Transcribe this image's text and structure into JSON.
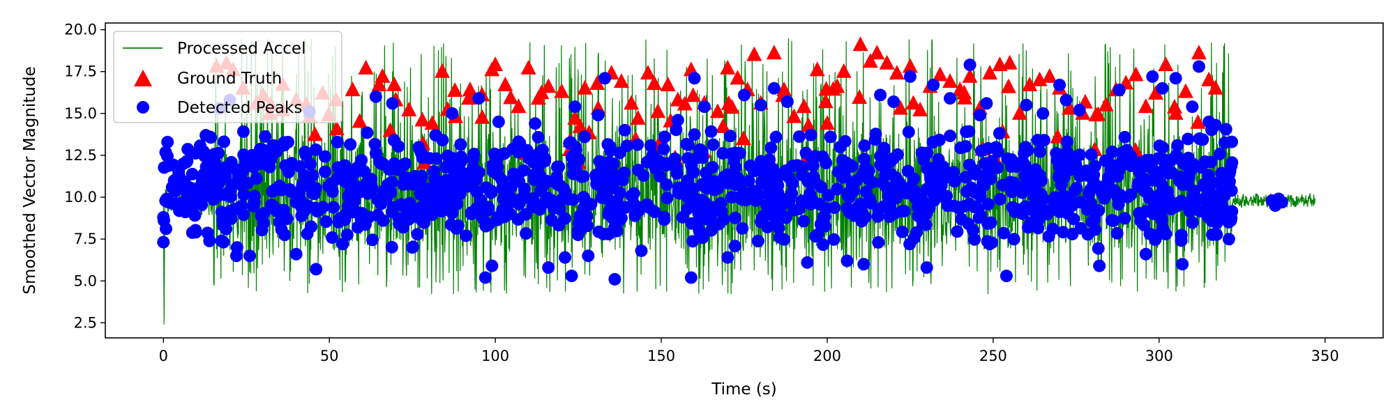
{
  "chart_data": {
    "type": "scatter",
    "title": "",
    "xlabel": "Time (s)",
    "ylabel": "Smoothed Vector Magnitude",
    "xlim": [
      -17.5,
      367.5
    ],
    "ylim": [
      1.6,
      20.4
    ],
    "xticks": [
      0,
      50,
      100,
      150,
      200,
      250,
      300,
      350
    ],
    "yticks": [
      2.5,
      5.0,
      7.5,
      10.0,
      12.5,
      15.0,
      17.5,
      20.0
    ],
    "x_tick_labels": [
      "0",
      "50",
      "100",
      "150",
      "200",
      "250",
      "300",
      "350"
    ],
    "y_tick_labels": [
      "2.5",
      "5.0",
      "7.5",
      "10.0",
      "12.5",
      "15.0",
      "17.5",
      "20.0"
    ],
    "grid": false,
    "legend_position": "top-left",
    "series": [
      {
        "name": "Processed Accel",
        "kind": "line",
        "color": "#008000",
        "summary": {
          "start": [
            0,
            9.8
          ],
          "active_range": [
            15,
            322
          ],
          "active_min": 4.2,
          "active_max": 19.5,
          "rest_value": 9.8,
          "end": 347,
          "min_spike": [
            0,
            2.4
          ]
        }
      },
      {
        "name": "Ground Truth",
        "kind": "marker-triangle",
        "color": "#ff0000",
        "points": [
          [
            16,
            17.8
          ],
          [
            19,
            18.0
          ],
          [
            21,
            17.6
          ],
          [
            24,
            16.5
          ],
          [
            28,
            15.6
          ],
          [
            32,
            15.0
          ],
          [
            36,
            15.2
          ],
          [
            40,
            15.8
          ],
          [
            44,
            14.8
          ],
          [
            48,
            16.2
          ],
          [
            52,
            15.8
          ],
          [
            57,
            16.4
          ],
          [
            61,
            17.7
          ],
          [
            65,
            16.7
          ],
          [
            66,
            17.2
          ],
          [
            70,
            15.8
          ],
          [
            74,
            15.2
          ],
          [
            78,
            14.6
          ],
          [
            81,
            14.4
          ],
          [
            84,
            17.5
          ],
          [
            88,
            14.8
          ],
          [
            92,
            15.9
          ],
          [
            96,
            16.1
          ],
          [
            99,
            17.6
          ],
          [
            100,
            17.9
          ],
          [
            103,
            16.7
          ],
          [
            107,
            15.4
          ],
          [
            110,
            17.7
          ],
          [
            113,
            15.9
          ],
          [
            116,
            16.6
          ],
          [
            120,
            16.3
          ],
          [
            124,
            14.7
          ],
          [
            127,
            16.5
          ],
          [
            131,
            15.3
          ],
          [
            135,
            17.4
          ],
          [
            138,
            16.9
          ],
          [
            141,
            15.6
          ],
          [
            143,
            14.7
          ],
          [
            146,
            17.4
          ],
          [
            149,
            15.1
          ],
          [
            152,
            16.7
          ],
          [
            155,
            15.8
          ],
          [
            159,
            17.6
          ],
          [
            163,
            15.6
          ],
          [
            167,
            15.1
          ],
          [
            170,
            17.7
          ],
          [
            173,
            17.1
          ],
          [
            176,
            16.4
          ],
          [
            178,
            18.5
          ],
          [
            180,
            15.6
          ],
          [
            184,
            18.6
          ],
          [
            187,
            16.4
          ],
          [
            190,
            14.8
          ],
          [
            193,
            15.4
          ],
          [
            197,
            17.6
          ],
          [
            200,
            14.4
          ],
          [
            203,
            16.6
          ],
          [
            205,
            17.5
          ],
          [
            210,
            19.1
          ],
          [
            213,
            18.1
          ],
          [
            215,
            18.6
          ],
          [
            218,
            18.0
          ],
          [
            221,
            17.4
          ],
          [
            225,
            17.8
          ],
          [
            228,
            15.2
          ],
          [
            231,
            16.6
          ],
          [
            234,
            17.3
          ],
          [
            237,
            16.9
          ],
          [
            240,
            16.4
          ],
          [
            243,
            17.2
          ],
          [
            246,
            15.3
          ],
          [
            249,
            17.4
          ],
          [
            252,
            17.9
          ],
          [
            255,
            18.0
          ],
          [
            258,
            15.0
          ],
          [
            261,
            16.7
          ],
          [
            264,
            17.0
          ],
          [
            267,
            17.2
          ],
          [
            270,
            16.5
          ],
          [
            273,
            15.3
          ],
          [
            277,
            15.0
          ],
          [
            281,
            14.9
          ],
          [
            284,
            15.5
          ],
          [
            287,
            16.4
          ],
          [
            290,
            16.8
          ],
          [
            293,
            17.3
          ],
          [
            296,
            15.4
          ],
          [
            299,
            16.2
          ],
          [
            302,
            17.9
          ],
          [
            305,
            15.0
          ],
          [
            308,
            16.3
          ],
          [
            312,
            18.6
          ],
          [
            315,
            17.0
          ],
          [
            317,
            16.5
          ]
        ],
        "scatter_extra": {
          "count": 60,
          "x_range": [
            15,
            320
          ],
          "y_range": [
            11.8,
            16.8
          ],
          "seed": 7
        }
      },
      {
        "name": "Detected Peaks",
        "kind": "marker-circle",
        "color": "#0000ff",
        "points": [
          [
            0,
            8.8
          ],
          [
            1,
            9.9
          ],
          [
            3,
            9.6
          ],
          [
            7,
            12.1
          ],
          [
            10,
            10.4
          ],
          [
            14,
            13.6
          ],
          [
            17,
            15.3
          ],
          [
            20,
            15.8
          ],
          [
            22,
            6.5
          ],
          [
            26,
            6.5
          ],
          [
            32,
            11.8
          ],
          [
            40,
            6.6
          ],
          [
            44,
            15.1
          ],
          [
            46,
            5.7
          ],
          [
            54,
            7.2
          ],
          [
            64,
            16.0
          ],
          [
            69,
            15.6
          ],
          [
            75,
            7.0
          ],
          [
            82,
            13.7
          ],
          [
            87,
            15.0
          ],
          [
            95,
            15.9
          ],
          [
            97,
            5.2
          ],
          [
            99,
            5.9
          ],
          [
            101,
            14.5
          ],
          [
            112,
            14.4
          ],
          [
            116,
            5.8
          ],
          [
            121,
            6.4
          ],
          [
            123,
            5.3
          ],
          [
            124,
            15.4
          ],
          [
            128,
            6.5
          ],
          [
            131,
            14.9
          ],
          [
            133,
            17.1
          ],
          [
            136,
            5.1
          ],
          [
            139,
            14.0
          ],
          [
            144,
            6.8
          ],
          [
            151,
            13.6
          ],
          [
            155,
            14.6
          ],
          [
            158,
            11.0
          ],
          [
            159,
            5.2
          ],
          [
            160,
            17.1
          ],
          [
            163,
            15.4
          ],
          [
            170,
            6.4
          ],
          [
            175,
            16.1
          ],
          [
            180,
            15.5
          ],
          [
            184,
            16.5
          ],
          [
            188,
            15.7
          ],
          [
            191,
            11.9
          ],
          [
            194,
            6.1
          ],
          [
            201,
            13.6
          ],
          [
            206,
            6.2
          ],
          [
            210,
            9.6
          ],
          [
            211,
            6.0
          ],
          [
            216,
            16.1
          ],
          [
            220,
            15.7
          ],
          [
            225,
            17.2
          ],
          [
            230,
            5.8
          ],
          [
            232,
            16.7
          ],
          [
            237,
            15.9
          ],
          [
            243,
            17.9
          ],
          [
            246,
            14.9
          ],
          [
            248,
            15.6
          ],
          [
            254,
            5.3
          ],
          [
            260,
            15.5
          ],
          [
            265,
            15.0
          ],
          [
            270,
            16.7
          ],
          [
            272,
            15.8
          ],
          [
            276,
            15.2
          ],
          [
            282,
            5.9
          ],
          [
            288,
            16.4
          ],
          [
            296,
            6.6
          ],
          [
            298,
            17.2
          ],
          [
            301,
            16.5
          ],
          [
            302,
            7.8
          ],
          [
            305,
            17.1
          ],
          [
            307,
            6.0
          ],
          [
            310,
            15.4
          ],
          [
            312,
            17.8
          ],
          [
            315,
            14.5
          ],
          [
            317,
            14.3
          ],
          [
            320,
            11.2
          ],
          [
            334,
            9.8
          ],
          [
            335,
            9.5
          ],
          [
            336,
            9.9
          ],
          [
            337,
            9.7
          ]
        ],
        "scatter_extra": {
          "count": 1200,
          "x_range": [
            0,
            322
          ],
          "y_range": [
            6.8,
            14.2
          ],
          "seed": 11
        }
      }
    ]
  }
}
